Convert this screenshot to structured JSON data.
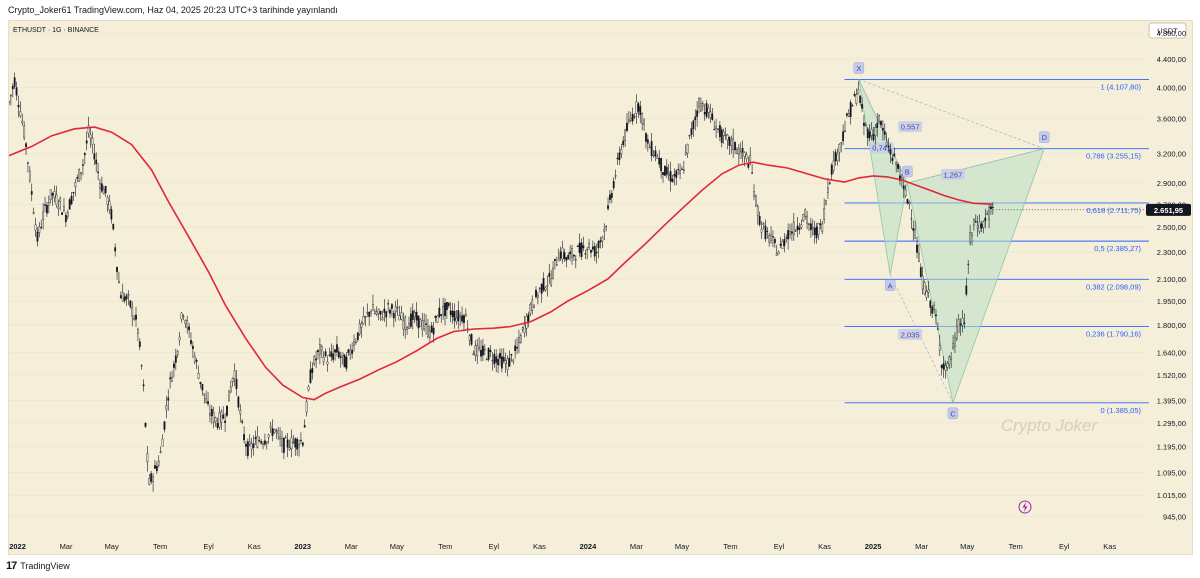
{
  "header": {
    "published": "Crypto_Joker61 TradingView.com, Haz 04, 2025 20:23 UTC+3 tarihinde yayınlandı"
  },
  "footer": {
    "logo_text": "TradingView",
    "logo_mark": "17"
  },
  "chart_data": {
    "type": "candlestick",
    "symbol_label": "ETHUSDT · 1G · BINANCE",
    "currency_label": "USDT",
    "watermark": "Crypto Joker",
    "current_price": "2.651,95",
    "y_scale": "log",
    "ylim": [
      900,
      5000
    ],
    "y_ticks": [
      {
        "v": 4800,
        "label": "4.800,00"
      },
      {
        "v": 4400,
        "label": "4.400,00"
      },
      {
        "v": 4000,
        "label": "4.000,00"
      },
      {
        "v": 3600,
        "label": "3.600,00"
      },
      {
        "v": 3200,
        "label": "3.200,00"
      },
      {
        "v": 2900,
        "label": "2.900,00"
      },
      {
        "v": 2700,
        "label": "2.700,00"
      },
      {
        "v": 2500,
        "label": "2.500,00"
      },
      {
        "v": 2300,
        "label": "2.300,00"
      },
      {
        "v": 2100,
        "label": "2.100,00"
      },
      {
        "v": 1950,
        "label": "1.950,00"
      },
      {
        "v": 1800,
        "label": "1.800,00"
      },
      {
        "v": 1640,
        "label": "1.640,00"
      },
      {
        "v": 1520,
        "label": "1.520,00"
      },
      {
        "v": 1395,
        "label": "1.395,00"
      },
      {
        "v": 1295,
        "label": "1.295,00"
      },
      {
        "v": 1195,
        "label": "1.195,00"
      },
      {
        "v": 1095,
        "label": "1.095,00"
      },
      {
        "v": 1015,
        "label": "1.015,00"
      },
      {
        "v": 945,
        "label": "945,00"
      }
    ],
    "x_range": [
      2021.97,
      2025.95
    ],
    "x_ticks": [
      {
        "t": 2022.0,
        "label": "2022",
        "bold": true
      },
      {
        "t": 2022.17,
        "label": "Mar"
      },
      {
        "t": 2022.33,
        "label": "May"
      },
      {
        "t": 2022.5,
        "label": "Tem"
      },
      {
        "t": 2022.67,
        "label": "Eyl"
      },
      {
        "t": 2022.83,
        "label": "Kas"
      },
      {
        "t": 2023.0,
        "label": "2023",
        "bold": true
      },
      {
        "t": 2023.17,
        "label": "Mar"
      },
      {
        "t": 2023.33,
        "label": "May"
      },
      {
        "t": 2023.5,
        "label": "Tem"
      },
      {
        "t": 2023.67,
        "label": "Eyl"
      },
      {
        "t": 2023.83,
        "label": "Kas"
      },
      {
        "t": 2024.0,
        "label": "2024",
        "bold": true
      },
      {
        "t": 2024.17,
        "label": "Mar"
      },
      {
        "t": 2024.33,
        "label": "May"
      },
      {
        "t": 2024.5,
        "label": "Tem"
      },
      {
        "t": 2024.67,
        "label": "Eyl"
      },
      {
        "t": 2024.83,
        "label": "Kas"
      },
      {
        "t": 2025.0,
        "label": "2025",
        "bold": true
      },
      {
        "t": 2025.17,
        "label": "Mar"
      },
      {
        "t": 2025.33,
        "label": "May"
      },
      {
        "t": 2025.5,
        "label": "Tem"
      },
      {
        "t": 2025.67,
        "label": "Eyl"
      },
      {
        "t": 2025.83,
        "label": "Kas"
      }
    ],
    "price_path": [
      [
        2021.97,
        3800
      ],
      [
        2021.99,
        4100
      ],
      [
        2022.01,
        3700
      ],
      [
        2022.03,
        3300
      ],
      [
        2022.05,
        2800
      ],
      [
        2022.07,
        2400
      ],
      [
        2022.09,
        2600
      ],
      [
        2022.12,
        2800
      ],
      [
        2022.15,
        2700
      ],
      [
        2022.17,
        2600
      ],
      [
        2022.2,
        2850
      ],
      [
        2022.23,
        3100
      ],
      [
        2022.25,
        3450
      ],
      [
        2022.27,
        3200
      ],
      [
        2022.29,
        2900
      ],
      [
        2022.31,
        2800
      ],
      [
        2022.33,
        2600
      ],
      [
        2022.36,
        2000
      ],
      [
        2022.39,
        1950
      ],
      [
        2022.42,
        1800
      ],
      [
        2022.44,
        1500
      ],
      [
        2022.46,
        1050
      ],
      [
        2022.48,
        1100
      ],
      [
        2022.5,
        1150
      ],
      [
        2022.53,
        1450
      ],
      [
        2022.56,
        1650
      ],
      [
        2022.58,
        1900
      ],
      [
        2022.61,
        1700
      ],
      [
        2022.64,
        1500
      ],
      [
        2022.67,
        1350
      ],
      [
        2022.7,
        1300
      ],
      [
        2022.73,
        1330
      ],
      [
        2022.76,
        1550
      ],
      [
        2022.79,
        1250
      ],
      [
        2022.81,
        1180
      ],
      [
        2022.84,
        1220
      ],
      [
        2022.87,
        1230
      ],
      [
        2022.9,
        1270
      ],
      [
        2022.93,
        1200
      ],
      [
        2022.96,
        1210
      ],
      [
        2023.0,
        1220
      ],
      [
        2023.03,
        1550
      ],
      [
        2023.06,
        1650
      ],
      [
        2023.09,
        1600
      ],
      [
        2023.12,
        1650
      ],
      [
        2023.15,
        1580
      ],
      [
        2023.18,
        1700
      ],
      [
        2023.21,
        1800
      ],
      [
        2023.24,
        1900
      ],
      [
        2023.27,
        1850
      ],
      [
        2023.3,
        1900
      ],
      [
        2023.33,
        1880
      ],
      [
        2023.36,
        1800
      ],
      [
        2023.39,
        1850
      ],
      [
        2023.42,
        1800
      ],
      [
        2023.45,
        1750
      ],
      [
        2023.48,
        1880
      ],
      [
        2023.51,
        1900
      ],
      [
        2023.54,
        1850
      ],
      [
        2023.57,
        1860
      ],
      [
        2023.6,
        1650
      ],
      [
        2023.63,
        1640
      ],
      [
        2023.66,
        1630
      ],
      [
        2023.69,
        1600
      ],
      [
        2023.72,
        1580
      ],
      [
        2023.75,
        1650
      ],
      [
        2023.78,
        1800
      ],
      [
        2023.81,
        1950
      ],
      [
        2023.84,
        2050
      ],
      [
        2023.87,
        2100
      ],
      [
        2023.9,
        2300
      ],
      [
        2023.93,
        2250
      ],
      [
        2023.96,
        2300
      ],
      [
        2024.0,
        2350
      ],
      [
        2024.03,
        2300
      ],
      [
        2024.06,
        2500
      ],
      [
        2024.09,
        2900
      ],
      [
        2024.12,
        3300
      ],
      [
        2024.15,
        3600
      ],
      [
        2024.18,
        3800
      ],
      [
        2024.21,
        3300
      ],
      [
        2024.24,
        3200
      ],
      [
        2024.27,
        3000
      ],
      [
        2024.3,
        2950
      ],
      [
        2024.33,
        3000
      ],
      [
        2024.36,
        3400
      ],
      [
        2024.39,
        3800
      ],
      [
        2024.42,
        3700
      ],
      [
        2024.45,
        3500
      ],
      [
        2024.48,
        3350
      ],
      [
        2024.51,
        3300
      ],
      [
        2024.54,
        3200
      ],
      [
        2024.57,
        3100
      ],
      [
        2024.59,
        2700
      ],
      [
        2024.61,
        2500
      ],
      [
        2024.64,
        2400
      ],
      [
        2024.67,
        2300
      ],
      [
        2024.7,
        2450
      ],
      [
        2024.73,
        2500
      ],
      [
        2024.76,
        2600
      ],
      [
        2024.79,
        2450
      ],
      [
        2024.82,
        2500
      ],
      [
        2024.85,
        3000
      ],
      [
        2024.88,
        3250
      ],
      [
        2024.91,
        3600
      ],
      [
        2024.93,
        3800
      ],
      [
        2024.95,
        3950
      ],
      [
        2024.97,
        3500
      ],
      [
        2025.0,
        3400
      ],
      [
        2025.02,
        3600
      ],
      [
        2025.05,
        3300
      ],
      [
        2025.07,
        3150
      ],
      [
        2025.09,
        3050
      ],
      [
        2025.11,
        2800
      ],
      [
        2025.13,
        2700
      ],
      [
        2025.15,
        2400
      ],
      [
        2025.17,
        2100
      ],
      [
        2025.19,
        2000
      ],
      [
        2025.22,
        1850
      ],
      [
        2025.24,
        1600
      ],
      [
        2025.26,
        1550
      ],
      [
        2025.28,
        1650
      ],
      [
        2025.3,
        1800
      ],
      [
        2025.32,
        1820
      ],
      [
        2025.34,
        2400
      ],
      [
        2025.36,
        2550
      ],
      [
        2025.38,
        2500
      ],
      [
        2025.4,
        2600
      ],
      [
        2025.42,
        2650
      ]
    ],
    "moving_average": [
      [
        2021.97,
        3180
      ],
      [
        2022.05,
        3280
      ],
      [
        2022.12,
        3400
      ],
      [
        2022.2,
        3480
      ],
      [
        2022.27,
        3500
      ],
      [
        2022.33,
        3440
      ],
      [
        2022.4,
        3300
      ],
      [
        2022.47,
        3030
      ],
      [
        2022.53,
        2720
      ],
      [
        2022.6,
        2420
      ],
      [
        2022.67,
        2150
      ],
      [
        2022.73,
        1920
      ],
      [
        2022.8,
        1720
      ],
      [
        2022.87,
        1560
      ],
      [
        2022.93,
        1470
      ],
      [
        2023.0,
        1410
      ],
      [
        2023.04,
        1400
      ],
      [
        2023.08,
        1430
      ],
      [
        2023.13,
        1460
      ],
      [
        2023.2,
        1500
      ],
      [
        2023.27,
        1550
      ],
      [
        2023.33,
        1590
      ],
      [
        2023.4,
        1650
      ],
      [
        2023.47,
        1720
      ],
      [
        2023.53,
        1760
      ],
      [
        2023.6,
        1775
      ],
      [
        2023.67,
        1780
      ],
      [
        2023.73,
        1790
      ],
      [
        2023.8,
        1820
      ],
      [
        2023.87,
        1880
      ],
      [
        2023.93,
        1950
      ],
      [
        2024.0,
        2020
      ],
      [
        2024.07,
        2100
      ],
      [
        2024.13,
        2220
      ],
      [
        2024.2,
        2360
      ],
      [
        2024.27,
        2520
      ],
      [
        2024.33,
        2660
      ],
      [
        2024.4,
        2830
      ],
      [
        2024.47,
        2990
      ],
      [
        2024.53,
        3080
      ],
      [
        2024.58,
        3110
      ],
      [
        2024.63,
        3080
      ],
      [
        2024.7,
        3050
      ],
      [
        2024.77,
        2990
      ],
      [
        2024.83,
        2940
      ],
      [
        2024.9,
        2910
      ],
      [
        2024.95,
        2950
      ],
      [
        2025.0,
        2970
      ],
      [
        2025.05,
        2960
      ],
      [
        2025.1,
        2930
      ],
      [
        2025.15,
        2880
      ],
      [
        2025.2,
        2830
      ],
      [
        2025.25,
        2780
      ],
      [
        2025.3,
        2740
      ],
      [
        2025.35,
        2710
      ],
      [
        2025.42,
        2700
      ]
    ],
    "fib_levels": [
      {
        "v": 4107.8,
        "label": "1 (4.107,80)"
      },
      {
        "v": 3255.15,
        "label": "0,786 (3.255,15)"
      },
      {
        "v": 2711.75,
        "label": "0,618 (2.711,75)"
      },
      {
        "v": 2385.27,
        "label": "0,5 (2.385,27)"
      },
      {
        "v": 2098.09,
        "label": "0,382 (2.098,09)"
      },
      {
        "v": 1790.16,
        "label": "0,236 (1.790,16)"
      },
      {
        "v": 1385.05,
        "label": "0 (1.385,05)"
      }
    ],
    "fib_range_t": [
      2024.9,
      2025.5
    ],
    "harmonic": {
      "points": [
        {
          "name": "X",
          "t": 2024.95,
          "v": 4107.8
        },
        {
          "name": "A",
          "t": 2025.06,
          "v": 2130
        },
        {
          "name": "B",
          "t": 2025.12,
          "v": 2900
        },
        {
          "name": "C",
          "t": 2025.28,
          "v": 1385
        },
        {
          "name": "D",
          "t": 2025.6,
          "v": 3255
        }
      ],
      "ratios": [
        {
          "label": "0,557",
          "t": 2025.13,
          "v": 3500
        },
        {
          "label": "0,741",
          "t": 2025.03,
          "v": 3260
        },
        {
          "label": "1,267",
          "t": 2025.28,
          "v": 2980
        },
        {
          "label": "2,035",
          "t": 2025.13,
          "v": 1740
        }
      ]
    }
  }
}
